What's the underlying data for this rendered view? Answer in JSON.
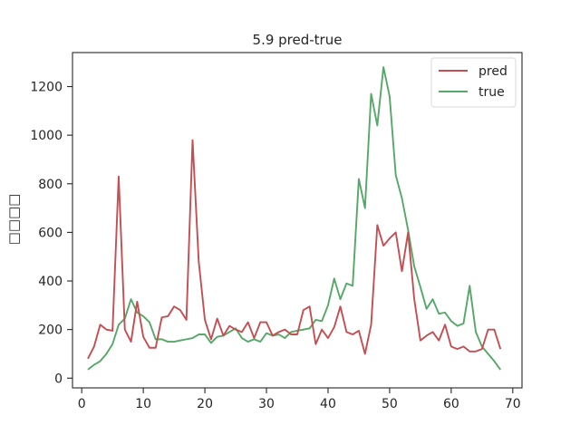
{
  "chart_data": {
    "type": "line",
    "title": "5.9 pred-true",
    "ylabel": "□□□□",
    "xlabel": "",
    "xlim": [
      -1.5,
      71.5
    ],
    "ylim": [
      -40,
      1340
    ],
    "xticks": [
      0,
      10,
      20,
      30,
      40,
      50,
      60,
      70
    ],
    "yticks": [
      0,
      200,
      400,
      600,
      800,
      1000,
      1200
    ],
    "grid": false,
    "legend_position": "upper right",
    "x": [
      1,
      2,
      3,
      4,
      5,
      6,
      7,
      8,
      9,
      10,
      11,
      12,
      13,
      14,
      15,
      16,
      17,
      18,
      19,
      20,
      21,
      22,
      23,
      24,
      25,
      26,
      27,
      28,
      29,
      30,
      31,
      32,
      33,
      34,
      35,
      36,
      37,
      38,
      39,
      40,
      41,
      42,
      43,
      44,
      45,
      46,
      47,
      48,
      49,
      50,
      51,
      52,
      53,
      54,
      55,
      56,
      57,
      58,
      59,
      60,
      61,
      62,
      63,
      64,
      65,
      66,
      67,
      68
    ],
    "series": [
      {
        "name": "pred",
        "color": "#c44e52",
        "values": [
          80,
          130,
          220,
          200,
          195,
          830,
          200,
          150,
          315,
          170,
          125,
          125,
          250,
          255,
          295,
          280,
          240,
          980,
          480,
          240,
          160,
          245,
          175,
          215,
          200,
          190,
          230,
          165,
          230,
          230,
          175,
          190,
          200,
          180,
          180,
          280,
          295,
          140,
          200,
          165,
          210,
          295,
          190,
          180,
          195,
          100,
          220,
          630,
          545,
          575,
          600,
          440,
          600,
          325,
          155,
          175,
          190,
          155,
          220,
          130,
          120,
          130,
          110,
          110,
          120,
          200,
          200,
          120
        ]
      },
      {
        "name": "true",
        "color": "#55a868",
        "values": [
          35,
          55,
          70,
          100,
          140,
          220,
          245,
          325,
          270,
          255,
          230,
          160,
          160,
          150,
          150,
          155,
          160,
          165,
          180,
          180,
          145,
          170,
          175,
          190,
          205,
          165,
          150,
          160,
          150,
          185,
          175,
          180,
          165,
          190,
          195,
          200,
          205,
          240,
          235,
          300,
          410,
          325,
          390,
          380,
          820,
          700,
          1170,
          1040,
          1280,
          1160,
          835,
          740,
          610,
          460,
          375,
          285,
          325,
          265,
          270,
          235,
          215,
          225,
          380,
          190,
          130,
          100,
          70,
          35
        ]
      }
    ]
  }
}
